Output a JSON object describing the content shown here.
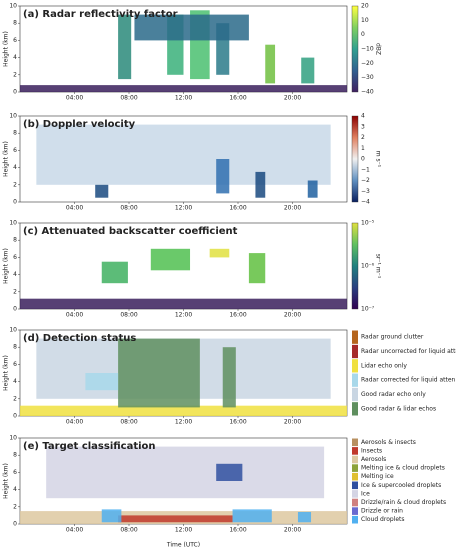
{
  "xlabel": "Time (UTC)",
  "xticks": [
    "04:00",
    "08:00",
    "12:00",
    "16:00",
    "20:00"
  ],
  "panels": [
    {
      "title": "(a) Radar reflectivity factor",
      "ylabel": "Height (km)",
      "yticks": [
        0,
        2,
        4,
        6,
        8,
        10
      ],
      "colorbar": {
        "label": "dBZ",
        "ticks": [
          "20",
          "10",
          "0",
          "−10",
          "−20",
          "−30",
          "−40"
        ]
      }
    },
    {
      "title": "(b) Doppler velocity",
      "ylabel": "Height (km)",
      "yticks": [
        0,
        2,
        4,
        6,
        8,
        10
      ],
      "colorbar": {
        "label": "m s⁻¹",
        "ticks": [
          "4",
          "3",
          "2",
          "1",
          "0",
          "−1",
          "−2",
          "−3",
          "−4"
        ]
      }
    },
    {
      "title": "(c) Attenuated backscatter coefficient",
      "ylabel": "Height (km)",
      "yticks": [
        0,
        2,
        4,
        6,
        8,
        10
      ],
      "colorbar": {
        "label": "sr⁻¹ m⁻¹",
        "ticks": [
          "10⁻⁵",
          "10⁻⁶",
          "10⁻⁷"
        ]
      }
    },
    {
      "title": "(d) Detection status",
      "ylabel": "Height (km)",
      "yticks": [
        0,
        2,
        4,
        6,
        8,
        10
      ],
      "legend": [
        {
          "name": "Radar ground clutter",
          "color": "#b5651d"
        },
        {
          "name": "Radar uncorrected for liquid atten.",
          "color": "#a52a2a"
        },
        {
          "name": "Lidar echo only",
          "color": "#f0e040"
        },
        {
          "name": "Radar corrected for liquid atten.",
          "color": "#a8d8ea"
        },
        {
          "name": "Good radar echo only",
          "color": "#c9d6e3"
        },
        {
          "name": "Good radar & lidar echos",
          "color": "#5f8f5f"
        }
      ]
    },
    {
      "title": "(e) Target classification",
      "ylabel": "Height (km)",
      "yticks": [
        0,
        2,
        4,
        6,
        8,
        10
      ],
      "legend": [
        {
          "name": "Aerosols & insects",
          "color": "#b89060"
        },
        {
          "name": "Insects",
          "color": "#c0392b"
        },
        {
          "name": "Aerosols",
          "color": "#ddc8a0"
        },
        {
          "name": "Melting ice & cloud droplets",
          "color": "#8da33a"
        },
        {
          "name": "Melting ice",
          "color": "#e0c030"
        },
        {
          "name": "Ice & supercooled droplets",
          "color": "#3050a0"
        },
        {
          "name": "Ice",
          "color": "#d4d4e4"
        },
        {
          "name": "Drizzle/rain & cloud droplets",
          "color": "#d08080"
        },
        {
          "name": "Drizzle or rain",
          "color": "#6a6ad0"
        },
        {
          "name": "Cloud droplets",
          "color": "#50b0f0"
        }
      ]
    }
  ]
}
